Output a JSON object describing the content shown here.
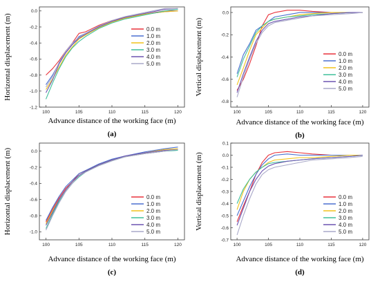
{
  "figure": {
    "panels": [
      {
        "id": "a",
        "panel_label": "(a)",
        "xlabel": "Advance distance of the working face (m)",
        "ylabel": "Horizontal displacement (m)",
        "xlim": [
          99,
          121
        ],
        "ylim": [
          -1.2,
          0.05
        ],
        "xticks": [
          "100",
          "105",
          "110",
          "115",
          "120"
        ],
        "xtick_values": [
          100,
          105,
          110,
          115,
          120
        ],
        "yticks": [
          "0.0",
          "-0.2",
          "-0.4",
          "-0.6",
          "-0.8",
          "-1.0",
          "-1.2"
        ],
        "ytick_values": [
          0,
          -0.2,
          -0.4,
          -0.6,
          -0.8,
          -1.0,
          -1.2
        ],
        "legend_pos": "top-right"
      },
      {
        "id": "b",
        "panel_label": "(b)",
        "xlabel": "Advance distance of the working face (m)",
        "ylabel": "Vertical displacement (m)",
        "xlim": [
          99,
          121
        ],
        "ylim": [
          -0.85,
          0.05
        ],
        "xticks": [
          "100",
          "105",
          "110",
          "115",
          "120"
        ],
        "xtick_values": [
          100,
          105,
          110,
          115,
          120
        ],
        "yticks": [
          "0.0",
          "-0.2",
          "-0.4",
          "-0.6",
          "-0.8"
        ],
        "ytick_values": [
          0,
          -0.2,
          -0.4,
          -0.6,
          -0.8
        ],
        "legend_pos": "bottom-right"
      },
      {
        "id": "c",
        "panel_label": "(c)",
        "xlabel": "Advance distance of the working face (m)",
        "ylabel": "Horizontal displacement (m)",
        "xlim": [
          99,
          121
        ],
        "ylim": [
          -1.1,
          0.1
        ],
        "xticks": [
          "100",
          "105",
          "110",
          "115",
          "120"
        ],
        "xtick_values": [
          100,
          105,
          110,
          115,
          120
        ],
        "yticks": [
          "0.0",
          "-0.2",
          "-0.4",
          "-0.6",
          "-0.8",
          "-1.0"
        ],
        "ytick_values": [
          0,
          -0.2,
          -0.4,
          -0.6,
          -0.8,
          -1.0
        ],
        "legend_pos": "bottom-right"
      },
      {
        "id": "d",
        "panel_label": "(d)",
        "xlabel": "Advance distance of the working face (m)",
        "ylabel": "Vertical displacement (m)",
        "xlim": [
          99,
          121
        ],
        "ylim": [
          -0.7,
          0.1
        ],
        "xticks": [
          "100",
          "105",
          "110",
          "115",
          "120"
        ],
        "xtick_values": [
          100,
          105,
          110,
          115,
          120
        ],
        "yticks": [
          "0.1",
          "0.0",
          "-0.1",
          "-0.2",
          "-0.3",
          "-0.4",
          "-0.5",
          "-0.6",
          "-0.7"
        ],
        "ytick_values": [
          0.1,
          0,
          -0.1,
          -0.2,
          -0.3,
          -0.4,
          -0.5,
          -0.6,
          -0.7
        ],
        "legend_pos": "bottom-right"
      }
    ]
  },
  "chart_data": [
    {
      "type": "line",
      "panel": "(a)",
      "xlabel": "Advance distance of the working face (m)",
      "ylabel": "Horizontal displacement (m)",
      "xlim": [
        99,
        121
      ],
      "ylim": [
        -1.2,
        0.05
      ],
      "x": [
        100,
        101,
        102,
        103,
        104,
        105,
        106,
        108,
        110,
        112,
        115,
        118,
        120
      ],
      "series": [
        {
          "name": "0.0 m",
          "color": "#e8313a",
          "values": [
            -0.8,
            -0.72,
            -0.62,
            -0.5,
            -0.4,
            -0.28,
            -0.26,
            -0.18,
            -0.12,
            -0.08,
            -0.04,
            0.0,
            0.0
          ]
        },
        {
          "name": "1.0 m",
          "color": "#4a6fd0",
          "values": [
            -0.92,
            -0.8,
            -0.65,
            -0.52,
            -0.42,
            -0.32,
            -0.28,
            -0.2,
            -0.13,
            -0.09,
            -0.04,
            -0.01,
            0.0
          ]
        },
        {
          "name": "2.0 m",
          "color": "#f2c21a",
          "values": [
            -0.98,
            -0.85,
            -0.7,
            -0.55,
            -0.45,
            -0.35,
            -0.3,
            -0.21,
            -0.14,
            -0.09,
            -0.04,
            -0.01,
            0.0
          ]
        },
        {
          "name": "3.0 m",
          "color": "#3fbf9a",
          "values": [
            -1.1,
            -0.9,
            -0.72,
            -0.57,
            -0.46,
            -0.38,
            -0.32,
            -0.22,
            -0.15,
            -0.1,
            -0.05,
            0.0,
            0.02
          ]
        },
        {
          "name": "4.0 m",
          "color": "#6c54b0",
          "values": [
            -1.02,
            -0.86,
            -0.66,
            -0.52,
            -0.42,
            -0.34,
            -0.29,
            -0.2,
            -0.13,
            -0.08,
            -0.03,
            0.02,
            0.03
          ]
        },
        {
          "name": "5.0 m",
          "color": "#a8a8c8",
          "values": [
            -0.95,
            -0.82,
            -0.64,
            -0.5,
            -0.4,
            -0.33,
            -0.28,
            -0.19,
            -0.12,
            -0.07,
            -0.02,
            0.03,
            0.03
          ]
        }
      ]
    },
    {
      "type": "line",
      "panel": "(b)",
      "xlabel": "Advance distance of the working face (m)",
      "ylabel": "Vertical displacement (m)",
      "xlim": [
        99,
        121
      ],
      "ylim": [
        -0.85,
        0.05
      ],
      "x": [
        100,
        101,
        102,
        103,
        104,
        105,
        106,
        108,
        110,
        112,
        115,
        118,
        120
      ],
      "series": [
        {
          "name": "0.0 m",
          "color": "#e8313a",
          "values": [
            -0.7,
            -0.6,
            -0.46,
            -0.3,
            -0.12,
            -0.02,
            0.0,
            0.02,
            0.02,
            0.01,
            0.0,
            0.0,
            0.0
          ]
        },
        {
          "name": "1.0 m",
          "color": "#4a6fd0",
          "values": [
            -0.55,
            -0.38,
            -0.28,
            -0.16,
            -0.12,
            -0.08,
            -0.04,
            -0.02,
            0.0,
            0.0,
            0.0,
            0.0,
            0.0
          ]
        },
        {
          "name": "2.0 m",
          "color": "#f2c21a",
          "values": [
            -0.65,
            -0.5,
            -0.34,
            -0.2,
            -0.14,
            -0.08,
            -0.06,
            -0.04,
            -0.02,
            -0.01,
            0.0,
            0.0,
            0.0
          ]
        },
        {
          "name": "3.0 m",
          "color": "#3fbf9a",
          "values": [
            -0.58,
            -0.42,
            -0.3,
            -0.18,
            -0.12,
            -0.08,
            -0.06,
            -0.04,
            -0.03,
            -0.02,
            -0.01,
            0.0,
            0.0
          ]
        },
        {
          "name": "4.0 m",
          "color": "#6c54b0",
          "values": [
            -0.72,
            -0.55,
            -0.4,
            -0.26,
            -0.16,
            -0.1,
            -0.08,
            -0.06,
            -0.04,
            -0.03,
            -0.01,
            0.0,
            0.0
          ]
        },
        {
          "name": "5.0 m",
          "color": "#a8a8c8",
          "values": [
            -0.76,
            -0.58,
            -0.42,
            -0.28,
            -0.18,
            -0.12,
            -0.09,
            -0.07,
            -0.05,
            -0.03,
            -0.02,
            -0.01,
            0.0
          ]
        }
      ]
    },
    {
      "type": "line",
      "panel": "(c)",
      "xlabel": "Advance distance of the working face (m)",
      "ylabel": "Horizontal displacement (m)",
      "xlim": [
        99,
        121
      ],
      "ylim": [
        -1.1,
        0.1
      ],
      "x": [
        100,
        101,
        102,
        103,
        104,
        105,
        106,
        108,
        110,
        112,
        115,
        118,
        120
      ],
      "series": [
        {
          "name": "0.0 m",
          "color": "#e8313a",
          "values": [
            -0.88,
            -0.72,
            -0.58,
            -0.46,
            -0.38,
            -0.28,
            -0.24,
            -0.17,
            -0.11,
            -0.07,
            -0.03,
            0.0,
            0.02
          ]
        },
        {
          "name": "1.0 m",
          "color": "#4a6fd0",
          "values": [
            -0.86,
            -0.7,
            -0.56,
            -0.44,
            -0.36,
            -0.28,
            -0.24,
            -0.16,
            -0.1,
            -0.06,
            -0.01,
            0.03,
            0.05
          ]
        },
        {
          "name": "2.0 m",
          "color": "#f2c21a",
          "values": [
            -0.9,
            -0.74,
            -0.6,
            -0.48,
            -0.38,
            -0.3,
            -0.25,
            -0.17,
            -0.11,
            -0.07,
            -0.02,
            0.02,
            0.03
          ]
        },
        {
          "name": "3.0 m",
          "color": "#3fbf9a",
          "values": [
            -0.96,
            -0.78,
            -0.62,
            -0.5,
            -0.4,
            -0.32,
            -0.26,
            -0.18,
            -0.12,
            -0.07,
            -0.03,
            0.0,
            0.01
          ]
        },
        {
          "name": "4.0 m",
          "color": "#6c54b0",
          "values": [
            -0.92,
            -0.76,
            -0.6,
            -0.48,
            -0.38,
            -0.3,
            -0.25,
            -0.17,
            -0.11,
            -0.06,
            -0.02,
            0.01,
            0.02
          ]
        },
        {
          "name": "5.0 m",
          "color": "#a8a8c8",
          "values": [
            -0.98,
            -0.8,
            -0.64,
            -0.5,
            -0.4,
            -0.31,
            -0.26,
            -0.18,
            -0.12,
            -0.07,
            -0.03,
            0.0,
            0.02
          ]
        }
      ]
    },
    {
      "type": "line",
      "panel": "(d)",
      "xlabel": "Advance distance of the working face (m)",
      "ylabel": "Vertical displacement (m)",
      "xlim": [
        99,
        121
      ],
      "ylim": [
        -0.7,
        0.1
      ],
      "x": [
        100,
        101,
        102,
        103,
        104,
        105,
        106,
        108,
        110,
        112,
        115,
        118,
        120
      ],
      "series": [
        {
          "name": "0.0 m",
          "color": "#e8313a",
          "values": [
            -0.55,
            -0.42,
            -0.3,
            -0.16,
            -0.06,
            0.0,
            0.02,
            0.03,
            0.02,
            0.01,
            0.0,
            0.0,
            0.0
          ]
        },
        {
          "name": "1.0 m",
          "color": "#4a6fd0",
          "values": [
            -0.5,
            -0.38,
            -0.26,
            -0.16,
            -0.08,
            -0.03,
            0.0,
            0.01,
            0.0,
            0.0,
            0.0,
            0.0,
            0.0
          ]
        },
        {
          "name": "2.0 m",
          "color": "#f2c21a",
          "values": [
            -0.45,
            -0.3,
            -0.2,
            -0.14,
            -0.1,
            -0.06,
            -0.04,
            -0.03,
            -0.02,
            -0.02,
            -0.01,
            0.0,
            0.0
          ]
        },
        {
          "name": "3.0 m",
          "color": "#3fbf9a",
          "values": [
            -0.4,
            -0.28,
            -0.2,
            -0.14,
            -0.1,
            -0.07,
            -0.06,
            -0.05,
            -0.04,
            -0.03,
            -0.02,
            -0.01,
            0.0
          ]
        },
        {
          "name": "4.0 m",
          "color": "#6c54b0",
          "values": [
            -0.58,
            -0.44,
            -0.3,
            -0.2,
            -0.13,
            -0.09,
            -0.07,
            -0.05,
            -0.04,
            -0.03,
            -0.02,
            -0.01,
            0.0
          ]
        },
        {
          "name": "5.0 m",
          "color": "#a8a8c8",
          "values": [
            -0.66,
            -0.5,
            -0.36,
            -0.24,
            -0.16,
            -0.12,
            -0.1,
            -0.08,
            -0.06,
            -0.04,
            -0.03,
            -0.02,
            -0.01
          ]
        }
      ]
    }
  ]
}
